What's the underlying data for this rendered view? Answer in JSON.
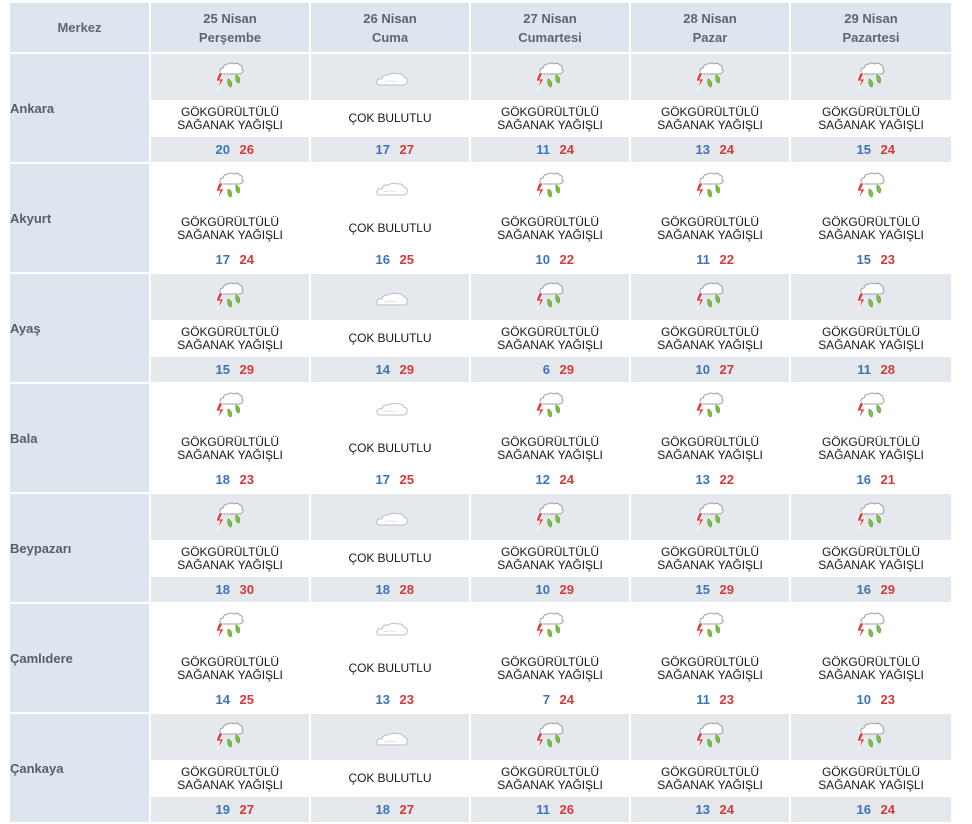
{
  "header": {
    "center_label": "Merkez",
    "days": [
      {
        "date": "25 Nisan",
        "weekday": "Perşembe"
      },
      {
        "date": "26 Nisan",
        "weekday": "Cuma"
      },
      {
        "date": "27 Nisan",
        "weekday": "Cumartesi"
      },
      {
        "date": "28 Nisan",
        "weekday": "Pazar"
      },
      {
        "date": "29 Nisan",
        "weekday": "Pazartesi"
      }
    ]
  },
  "conditions": {
    "storm": {
      "line1": "GÖKGÜRÜLTÜLÜ",
      "line2": "SAĞANAK YAĞIŞLI",
      "icon": "thunderstorm-rain-icon"
    },
    "cloudy": {
      "line1": "ÇOK BULUTLU",
      "line2": "",
      "icon": "cloudy-icon"
    }
  },
  "colors": {
    "min_temp": "#3e73b8",
    "max_temp": "#d23a3a",
    "header_bg": "#dde6ee"
  },
  "rows": [
    {
      "city": "Ankara",
      "days": [
        {
          "cond": "storm",
          "min": "20",
          "max": "26"
        },
        {
          "cond": "cloudy",
          "min": "17",
          "max": "27"
        },
        {
          "cond": "storm",
          "min": "11",
          "max": "24"
        },
        {
          "cond": "storm",
          "min": "13",
          "max": "24"
        },
        {
          "cond": "storm",
          "min": "15",
          "max": "24"
        }
      ]
    },
    {
      "city": "Akyurt",
      "days": [
        {
          "cond": "storm",
          "min": "17",
          "max": "24"
        },
        {
          "cond": "cloudy",
          "min": "16",
          "max": "25"
        },
        {
          "cond": "storm",
          "min": "10",
          "max": "22"
        },
        {
          "cond": "storm",
          "min": "11",
          "max": "22"
        },
        {
          "cond": "storm",
          "min": "15",
          "max": "23"
        }
      ]
    },
    {
      "city": "Ayaş",
      "days": [
        {
          "cond": "storm",
          "min": "15",
          "max": "29"
        },
        {
          "cond": "cloudy",
          "min": "14",
          "max": "29"
        },
        {
          "cond": "storm",
          "min": "6",
          "max": "29"
        },
        {
          "cond": "storm",
          "min": "10",
          "max": "27"
        },
        {
          "cond": "storm",
          "min": "11",
          "max": "28"
        }
      ]
    },
    {
      "city": "Bala",
      "days": [
        {
          "cond": "storm",
          "min": "18",
          "max": "23"
        },
        {
          "cond": "cloudy",
          "min": "17",
          "max": "25"
        },
        {
          "cond": "storm",
          "min": "12",
          "max": "24"
        },
        {
          "cond": "storm",
          "min": "13",
          "max": "22"
        },
        {
          "cond": "storm",
          "min": "16",
          "max": "21"
        }
      ]
    },
    {
      "city": "Beypazarı",
      "days": [
        {
          "cond": "storm",
          "min": "18",
          "max": "30"
        },
        {
          "cond": "cloudy",
          "min": "18",
          "max": "28"
        },
        {
          "cond": "storm",
          "min": "10",
          "max": "29"
        },
        {
          "cond": "storm",
          "min": "15",
          "max": "29"
        },
        {
          "cond": "storm",
          "min": "16",
          "max": "29"
        }
      ]
    },
    {
      "city": "Çamlıdere",
      "days": [
        {
          "cond": "storm",
          "min": "14",
          "max": "25"
        },
        {
          "cond": "cloudy",
          "min": "13",
          "max": "23"
        },
        {
          "cond": "storm",
          "min": "7",
          "max": "24"
        },
        {
          "cond": "storm",
          "min": "11",
          "max": "23"
        },
        {
          "cond": "storm",
          "min": "10",
          "max": "23"
        }
      ]
    },
    {
      "city": "Çankaya",
      "days": [
        {
          "cond": "storm",
          "min": "19",
          "max": "27"
        },
        {
          "cond": "cloudy",
          "min": "18",
          "max": "27"
        },
        {
          "cond": "storm",
          "min": "11",
          "max": "26"
        },
        {
          "cond": "storm",
          "min": "13",
          "max": "24"
        },
        {
          "cond": "storm",
          "min": "16",
          "max": "24"
        }
      ]
    }
  ]
}
